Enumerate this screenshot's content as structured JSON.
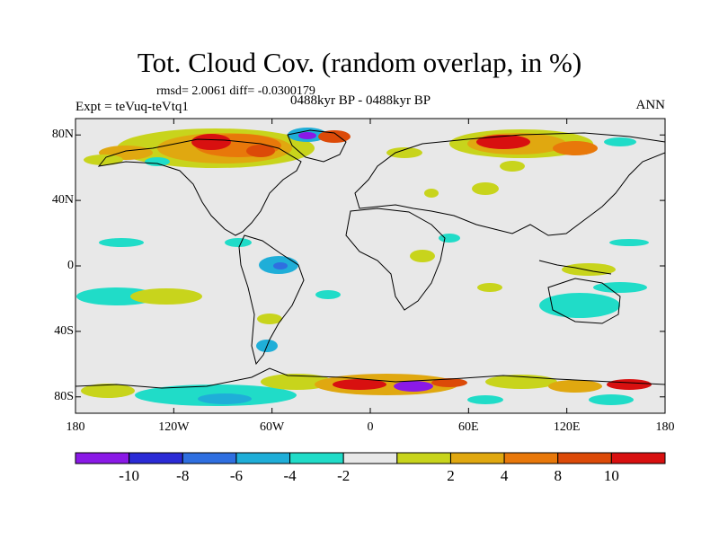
{
  "title": "Tot. Cloud Cov. (random overlap, in %)",
  "stats": "rmsd= 2.0061  diff= -0.0300179",
  "experiment": "Expt = teVuq-teVtq1",
  "period": "0488kyr BP - 0488kyr BP",
  "season": "ANN",
  "lat_ticks": [
    {
      "label": "80N",
      "lat": 80
    },
    {
      "label": "40N",
      "lat": 40
    },
    {
      "label": "0",
      "lat": 0
    },
    {
      "label": "40S",
      "lat": -40
    },
    {
      "label": "80S",
      "lat": -80
    }
  ],
  "lon_ticks": [
    {
      "label": "180",
      "lon": -180
    },
    {
      "label": "120W",
      "lon": -120
    },
    {
      "label": "60W",
      "lon": -60
    },
    {
      "label": "0",
      "lon": 0
    },
    {
      "label": "60E",
      "lon": 60
    },
    {
      "label": "120E",
      "lon": 120
    },
    {
      "label": "180",
      "lon": 180
    }
  ],
  "colorbar": {
    "colors": [
      "#8a19e6",
      "#2b2bd6",
      "#2f6fe0",
      "#1faed8",
      "#20dcc8",
      "#e8e8e8",
      "#c8d41c",
      "#e0a810",
      "#e8780a",
      "#dc4a08",
      "#d81010"
    ],
    "labels": [
      "-10",
      "-8",
      "-6",
      "-4",
      "-2",
      "2",
      "4",
      "8",
      "10"
    ]
  },
  "colors": {
    "background": "#e8e8e8",
    "coast": "#000000"
  }
}
